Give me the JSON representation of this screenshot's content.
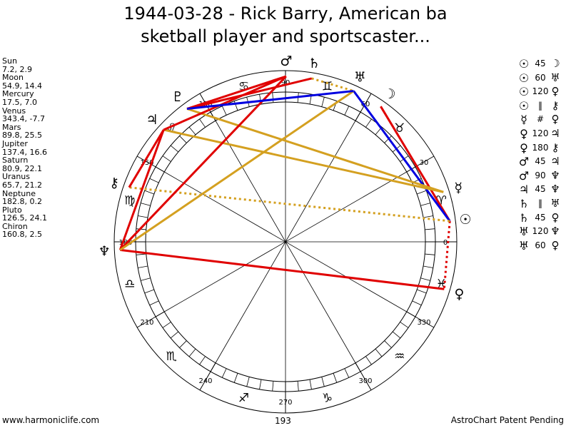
{
  "header": {
    "title_line1": "1944-03-28 - Rick Barry, American ba",
    "title_line2": "sketball player and sportscaster..."
  },
  "planets": [
    {
      "name": "Sun",
      "values": "7.2, 2.9",
      "glyph": "☉",
      "longitude": 7.2,
      "color": "#000000"
    },
    {
      "name": "Moon",
      "values": "54.9, 14.4",
      "glyph": "☽",
      "longitude": 54.9,
      "color": "#000000"
    },
    {
      "name": "Mercury",
      "values": "17.5, 7.0",
      "glyph": "☿",
      "longitude": 17.5,
      "color": "#000000"
    },
    {
      "name": "Venus",
      "values": "343.4, -7.7",
      "glyph": "♀",
      "longitude": 343.4,
      "color": "#000000"
    },
    {
      "name": "Mars",
      "values": "89.8, 25.5",
      "glyph": "♂",
      "longitude": 89.8,
      "color": "#000000"
    },
    {
      "name": "Jupiter",
      "values": "137.4, 16.6",
      "glyph": "♃",
      "longitude": 137.4,
      "color": "#000000"
    },
    {
      "name": "Saturn",
      "values": "80.9, 22.1",
      "glyph": "♄",
      "longitude": 80.9,
      "color": "#000000"
    },
    {
      "name": "Uranus",
      "values": "65.7, 21.2",
      "glyph": "♅",
      "longitude": 65.7,
      "color": "#000000"
    },
    {
      "name": "Neptune",
      "values": "182.8, 0.2",
      "glyph": "♆",
      "longitude": 182.8,
      "color": "#000000"
    },
    {
      "name": "Pluto",
      "values": "126.5, 24.1",
      "glyph": "♇",
      "longitude": 126.5,
      "color": "#000000"
    },
    {
      "name": "Chiron",
      "values": "160.8, 2.5",
      "glyph": "⚷",
      "longitude": 160.8,
      "color": "#000000"
    }
  ],
  "aspects": [
    {
      "a": "☉",
      "angle": "45",
      "b": "☽"
    },
    {
      "a": "☉",
      "angle": "60",
      "b": "♅"
    },
    {
      "a": "☉",
      "angle": "120",
      "b": "♀"
    },
    {
      "a": "☉",
      "angle": "‖",
      "b": "⚷"
    },
    {
      "a": "☿",
      "angle": "#",
      "b": "♀"
    },
    {
      "a": "♀",
      "angle": "120",
      "b": "♃"
    },
    {
      "a": "♀",
      "angle": "180",
      "b": "⚷"
    },
    {
      "a": "♂",
      "angle": "45",
      "b": "♃"
    },
    {
      "a": "♂",
      "angle": "90",
      "b": "♆"
    },
    {
      "a": "♃",
      "angle": "45",
      "b": "♆"
    },
    {
      "a": "♄",
      "angle": "‖",
      "b": "♅"
    },
    {
      "a": "♄",
      "angle": "45",
      "b": "♀"
    },
    {
      "a": "♅",
      "angle": "120",
      "b": "♆"
    },
    {
      "a": "♅",
      "angle": "60",
      "b": "♀"
    }
  ],
  "aspect_lines": [
    {
      "from": "Sun",
      "to": "Moon",
      "color": "#e00000",
      "style": "solid"
    },
    {
      "from": "Sun",
      "to": "Uranus",
      "color": "#0000e0",
      "style": "solid"
    },
    {
      "from": "Sun",
      "to": "Venus",
      "color": "#e00000",
      "style": "dotted"
    },
    {
      "from": "Sun",
      "to": "Chiron",
      "color": "#d4a020",
      "style": "dotted"
    },
    {
      "from": "Mercury",
      "to": "Jupiter",
      "color": "#d4a020",
      "style": "solid"
    },
    {
      "from": "Mercury",
      "to": "Pluto",
      "color": "#d4a020",
      "style": "solid"
    },
    {
      "from": "Venus",
      "to": "Neptune",
      "color": "#e00000",
      "style": "solid"
    },
    {
      "from": "Mars",
      "to": "Jupiter",
      "color": "#e00000",
      "style": "solid"
    },
    {
      "from": "Mars",
      "to": "Neptune",
      "color": "#e00000",
      "style": "solid"
    },
    {
      "from": "Mars",
      "to": "Pluto",
      "color": "#e00000",
      "style": "solid"
    },
    {
      "from": "Jupiter",
      "to": "Neptune",
      "color": "#e00000",
      "style": "solid"
    },
    {
      "from": "Saturn",
      "to": "Uranus",
      "color": "#d4a020",
      "style": "dotted"
    },
    {
      "from": "Saturn",
      "to": "Pluto",
      "color": "#e00000",
      "style": "solid"
    },
    {
      "from": "Uranus",
      "to": "Neptune",
      "color": "#d4a020",
      "style": "solid"
    },
    {
      "from": "Uranus",
      "to": "Pluto",
      "color": "#0000e0",
      "style": "solid"
    },
    {
      "from": "Jupiter",
      "to": "Chiron",
      "color": "#e00000",
      "style": "solid"
    }
  ],
  "wheel": {
    "degree_labels": [
      {
        "text": "0",
        "deg": 0
      },
      {
        "text": "30",
        "deg": 30
      },
      {
        "text": "60",
        "deg": 60
      },
      {
        "text": "90",
        "deg": 90
      },
      {
        "text": "120",
        "deg": 120
      },
      {
        "text": "150",
        "deg": 150
      },
      {
        "text": "180",
        "deg": 180
      },
      {
        "text": "210",
        "deg": 210
      },
      {
        "text": "240",
        "deg": 240
      },
      {
        "text": "270",
        "deg": 270
      },
      {
        "text": "300",
        "deg": 300
      },
      {
        "text": "330",
        "deg": 330
      }
    ],
    "signs": [
      {
        "glyph": "♈",
        "deg": 15
      },
      {
        "glyph": "♉",
        "deg": 45
      },
      {
        "glyph": "♊",
        "deg": 75
      },
      {
        "glyph": "♋",
        "deg": 105
      },
      {
        "glyph": "♌",
        "deg": 135
      },
      {
        "glyph": "♍",
        "deg": 165
      },
      {
        "glyph": "♎",
        "deg": 195
      },
      {
        "glyph": "♏",
        "deg": 225
      },
      {
        "glyph": "♐",
        "deg": 255
      },
      {
        "glyph": "♑",
        "deg": 285
      },
      {
        "glyph": "♒",
        "deg": 315
      },
      {
        "glyph": "♓",
        "deg": 345
      }
    ]
  },
  "footer": {
    "left": "www.harmoniclife.com",
    "center": "193",
    "right": "AstroChart Patent Pending"
  }
}
